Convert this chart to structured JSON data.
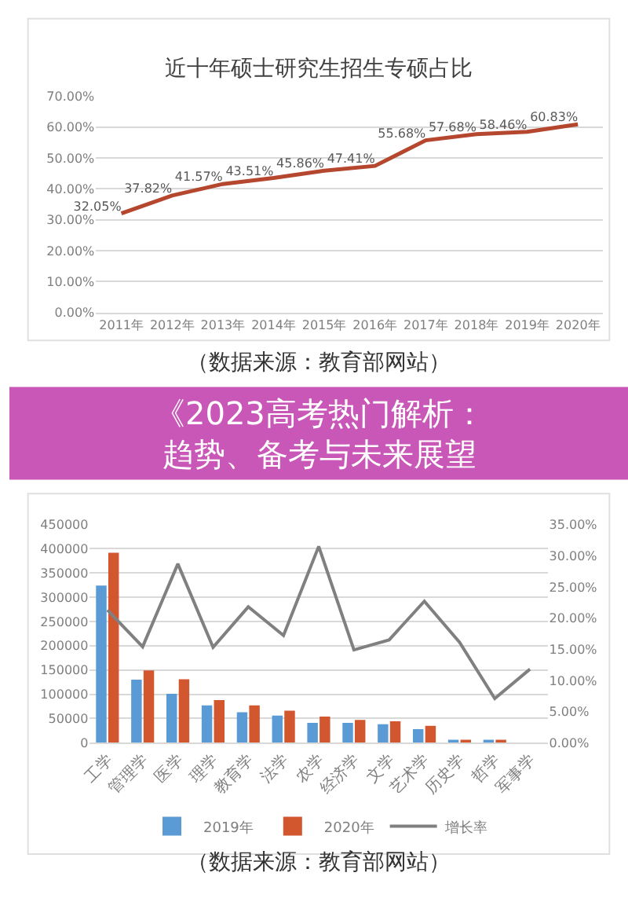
{
  "chart_data": [
    {
      "type": "line",
      "title": "近十年硕士研究生招生专硕占比",
      "categories": [
        "2011年",
        "2012年",
        "2013年",
        "2014年",
        "2015年",
        "2016年",
        "2017年",
        "2018年",
        "2019年",
        "2020年"
      ],
      "series": [
        {
          "color": "#b5472f",
          "values": [
            32.05,
            37.82,
            41.57,
            43.51,
            45.86,
            47.41,
            55.68,
            57.68,
            58.46,
            60.83
          ],
          "value_labels": [
            "32.05%",
            "37.82%",
            "41.57%",
            "43.51%",
            "45.86%",
            "47.41%",
            "55.68%",
            "57.68%",
            "58.46%",
            "60.83%"
          ]
        }
      ],
      "ylim": [
        0,
        70
      ],
      "yticks": [
        {
          "value": 0,
          "label": "0.00%"
        },
        {
          "value": 10,
          "label": "10.00%"
        },
        {
          "value": 20,
          "label": "20.00%"
        },
        {
          "value": 30,
          "label": "30.00%"
        },
        {
          "value": 40,
          "label": "40.00%"
        },
        {
          "value": 50,
          "label": "50.00%"
        },
        {
          "value": 60,
          "label": "60.00%"
        },
        {
          "value": 70,
          "label": "70.00%"
        }
      ],
      "grid": "y",
      "annotations": [
        "（数据来源：教育部网站）"
      ]
    },
    {
      "type": "bar",
      "title": "《2023高考热门解析：趋势、备考与未来展望",
      "categories": [
        "工学",
        "管理学",
        "医学",
        "理学",
        "教育学",
        "法学",
        "农学",
        "经济学",
        "文学",
        "艺术学",
        "历史学",
        "哲学",
        "军事学"
      ],
      "series": [
        {
          "name": "2019年",
          "type": "bar",
          "color": "#5b9bd5",
          "values": [
            324000,
            130000,
            101000,
            77000,
            63000,
            56000,
            41000,
            41000,
            38000,
            28000,
            5000,
            3000,
            null
          ]
        },
        {
          "name": "2020年",
          "type": "bar",
          "color": "#d2572f",
          "values": [
            392000,
            149000,
            131000,
            88000,
            77000,
            66000,
            54000,
            47000,
            44000,
            35000,
            6000,
            4000,
            null
          ]
        },
        {
          "name": "增长率",
          "type": "line",
          "axis": "y2",
          "color": "#808080",
          "values": [
            21.3,
            15.4,
            28.7,
            15.3,
            21.8,
            17.2,
            31.5,
            14.9,
            16.5,
            22.7,
            16.1,
            7.1,
            11.8
          ]
        }
      ],
      "ylim": [
        0,
        450000
      ],
      "yticks": [
        0,
        50000,
        100000,
        150000,
        200000,
        250000,
        300000,
        350000,
        400000,
        450000
      ],
      "y2lim": [
        0,
        35
      ],
      "y2ticks": [
        {
          "value": 0,
          "label": "0.00%"
        },
        {
          "value": 5,
          "label": "5.00%"
        },
        {
          "value": 10,
          "label": "10.00%"
        },
        {
          "value": 15,
          "label": "15.00%"
        },
        {
          "value": 20,
          "label": "20.00%"
        },
        {
          "value": 25,
          "label": "25.00%"
        },
        {
          "value": 30,
          "label": "30.00%"
        },
        {
          "value": 35,
          "label": "35.00%"
        }
      ],
      "grid": "y",
      "legend": "bottom",
      "annotations": [
        "（数据来源：教育部网站）"
      ]
    }
  ]
}
